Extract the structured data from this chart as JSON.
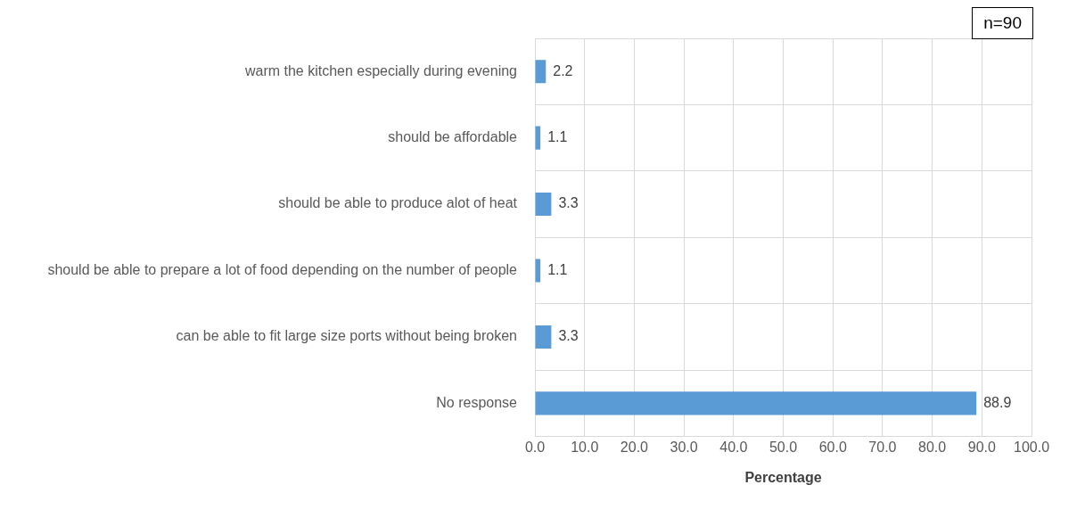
{
  "chart_data": {
    "type": "bar",
    "orientation": "horizontal",
    "xlabel": "Percentage",
    "categories": [
      "warm the kitchen especially during evening",
      "should be affordable",
      "should be able to produce alot of heat",
      "should be able to prepare a lot of food depending on the number of people",
      "can be able to fit large size ports without being broken",
      "No response"
    ],
    "values": [
      2.2,
      1.1,
      3.3,
      1.1,
      3.3,
      88.9
    ],
    "color": "#5b9bd5",
    "value_labels": [
      "2.2",
      "1.1",
      "3.3",
      "1.1",
      "3.3",
      "88.9"
    ],
    "xlim": [
      0,
      100
    ],
    "xticks": [
      {
        "value": 0,
        "label": "0.0"
      },
      {
        "value": 10,
        "label": "10.0"
      },
      {
        "value": 20,
        "label": "20.0"
      },
      {
        "value": 30,
        "label": "30.0"
      },
      {
        "value": 40,
        "label": "40.0"
      },
      {
        "value": 50,
        "label": "50.0"
      },
      {
        "value": 60,
        "label": "60.0"
      },
      {
        "value": 70,
        "label": "70.0"
      },
      {
        "value": 80,
        "label": "80.0"
      },
      {
        "value": 90,
        "label": "90.0"
      },
      {
        "value": 100,
        "label": "100.0"
      }
    ],
    "grid": true,
    "legend": false,
    "annotations": [
      "n=90"
    ]
  }
}
